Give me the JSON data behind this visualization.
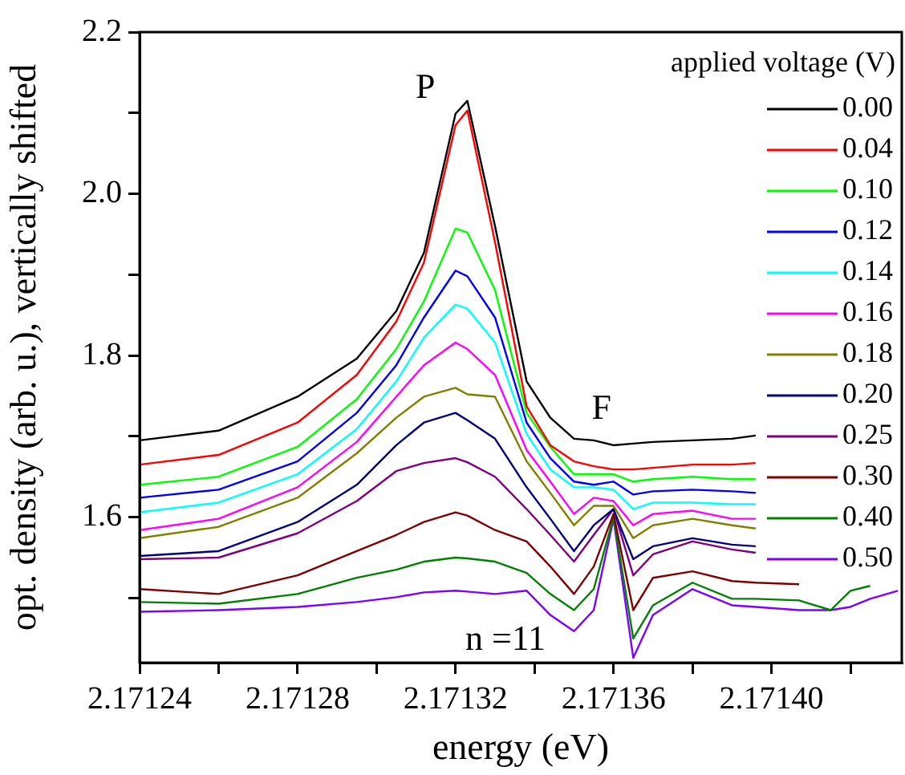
{
  "chart_data": {
    "type": "line",
    "xlabel": "energy (eV)",
    "ylabel": "opt. density (arb. u.), vertically shifted",
    "legend_title": "applied voltage (V)",
    "legend": "top right",
    "grid": false,
    "annotations": [
      "P",
      "F",
      "n =11"
    ],
    "x": [
      2.17124,
      2.17126,
      2.17128,
      2.171295,
      2.171305,
      2.171312,
      2.17132,
      2.171323,
      2.17133,
      2.171338,
      2.171344,
      2.17135,
      2.171355,
      2.17136,
      2.171365,
      2.17137,
      2.17138,
      2.17139,
      2.171396,
      2.171407,
      2.171415,
      2.17142,
      2.171425,
      2.171432
    ],
    "xlim": [
      2.17124,
      2.171433
    ],
    "ylim": [
      1.42,
      2.2
    ],
    "xticks": [
      2.17124,
      {
        "value": 2.17126,
        "label": null
      },
      2.17128,
      {
        "value": 2.1713,
        "label": null
      },
      2.17132,
      {
        "value": 2.17134,
        "label": null
      },
      2.17136,
      {
        "value": 2.17138,
        "label": null
      },
      {
        "value": 2.1714,
        "label": "2.17140"
      },
      {
        "value": 2.17142,
        "label": null
      }
    ],
    "yticks": [
      {
        "value": 1.5,
        "label": null
      },
      1.6,
      {
        "value": 1.7,
        "label": null
      },
      1.8,
      {
        "value": 1.9,
        "label": null
      },
      {
        "value": 2,
        "label": "2.0"
      },
      {
        "value": 2.1,
        "label": null
      },
      2.2
    ],
    "series": [
      {
        "name": "0.00",
        "color": "#000000",
        "values": [
          1.695,
          1.707,
          1.749,
          1.796,
          1.855,
          1.927,
          2.099,
          2.115,
          1.96,
          1.768,
          1.723,
          1.697,
          1.695,
          1.689,
          1.691,
          1.693,
          1.695,
          1.697,
          1.701,
          null,
          null,
          null,
          null,
          null
        ]
      },
      {
        "name": "0.04",
        "color": "#ff0000",
        "values": [
          1.665,
          1.677,
          1.717,
          1.776,
          1.842,
          1.915,
          2.085,
          2.103,
          1.94,
          1.737,
          1.689,
          1.669,
          1.663,
          1.659,
          1.659,
          1.661,
          1.665,
          1.665,
          1.667,
          null,
          null,
          null,
          null,
          null
        ]
      },
      {
        "name": "0.10",
        "color": "#00ff00",
        "values": [
          1.64,
          1.65,
          1.687,
          1.746,
          1.808,
          1.867,
          1.957,
          1.952,
          1.881,
          1.729,
          1.687,
          1.653,
          1.653,
          1.653,
          1.644,
          1.647,
          1.65,
          1.647,
          1.647,
          null,
          null,
          null,
          null,
          null
        ]
      },
      {
        "name": "0.12",
        "color": "#0000ff",
        "values": [
          1.624,
          1.634,
          1.669,
          1.729,
          1.788,
          1.847,
          1.905,
          1.898,
          1.847,
          1.717,
          1.673,
          1.644,
          1.64,
          1.644,
          1.628,
          1.632,
          1.634,
          1.632,
          1.63,
          null,
          null,
          null,
          null,
          null
        ]
      },
      {
        "name": "0.14",
        "color": "#00ffff",
        "values": [
          1.606,
          1.618,
          1.653,
          1.709,
          1.768,
          1.822,
          1.863,
          1.858,
          1.816,
          1.703,
          1.659,
          1.637,
          1.637,
          1.634,
          1.61,
          1.618,
          1.618,
          1.616,
          1.616,
          null,
          null,
          null,
          null,
          null
        ]
      },
      {
        "name": "0.16",
        "color": "#ff00ff",
        "values": [
          1.584,
          1.598,
          1.637,
          1.693,
          1.749,
          1.788,
          1.816,
          1.808,
          1.776,
          1.683,
          1.644,
          1.604,
          1.624,
          1.62,
          1.59,
          1.604,
          1.608,
          1.598,
          1.598,
          null,
          null,
          null,
          null,
          null
        ]
      },
      {
        "name": "0.18",
        "color": "#808000",
        "values": [
          1.574,
          1.588,
          1.624,
          1.679,
          1.723,
          1.749,
          1.76,
          1.752,
          1.749,
          1.669,
          1.63,
          1.59,
          1.614,
          1.614,
          1.574,
          1.59,
          1.598,
          1.59,
          1.586,
          null,
          null,
          null,
          null,
          null
        ]
      },
      {
        "name": "0.20",
        "color": "#000080",
        "values": [
          1.552,
          1.558,
          1.594,
          1.64,
          1.689,
          1.717,
          1.729,
          1.72,
          1.697,
          1.637,
          1.598,
          1.558,
          1.59,
          1.61,
          1.548,
          1.564,
          1.574,
          1.566,
          1.564,
          null,
          null,
          null,
          null,
          null
        ]
      },
      {
        "name": "0.25",
        "color": "#800080",
        "values": [
          1.548,
          1.55,
          1.58,
          1.62,
          1.657,
          1.667,
          1.673,
          1.668,
          1.65,
          1.61,
          1.578,
          1.545,
          1.578,
          1.61,
          1.528,
          1.554,
          1.57,
          1.56,
          1.556,
          null,
          null,
          null,
          null,
          null
        ]
      },
      {
        "name": "0.30",
        "color": "#800000",
        "values": [
          1.511,
          1.505,
          1.528,
          1.558,
          1.578,
          1.594,
          1.606,
          1.602,
          1.584,
          1.57,
          1.539,
          1.505,
          1.539,
          1.604,
          1.485,
          1.525,
          1.533,
          1.521,
          1.519,
          1.517,
          null,
          null,
          null,
          null
        ]
      },
      {
        "name": "0.40",
        "color": "#008000",
        "values": [
          1.495,
          1.493,
          1.505,
          1.525,
          1.535,
          1.545,
          1.55,
          1.549,
          1.545,
          1.531,
          1.505,
          1.485,
          1.511,
          1.6,
          1.45,
          1.491,
          1.519,
          1.499,
          1.499,
          1.497,
          1.485,
          1.509,
          1.515,
          null
        ]
      },
      {
        "name": "0.50",
        "color": "#8000ff",
        "values": [
          1.483,
          1.485,
          1.489,
          1.495,
          1.501,
          1.507,
          1.509,
          1.508,
          1.505,
          1.509,
          1.479,
          1.459,
          1.485,
          1.598,
          1.426,
          1.479,
          1.511,
          1.491,
          1.489,
          1.485,
          1.485,
          1.489,
          1.499,
          1.509
        ]
      }
    ]
  }
}
